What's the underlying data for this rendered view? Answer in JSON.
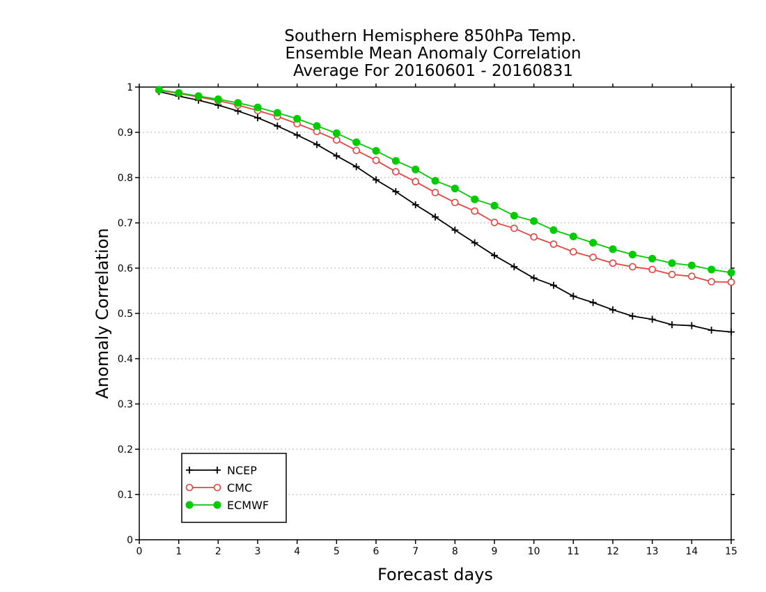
{
  "chart_data": {
    "type": "line",
    "title": [
      "Southern Hemisphere 850hPa Temp.",
      "Ensemble Mean Anomaly Correlation",
      "Average For 20160601 - 20160831"
    ],
    "xlabel": "Forecast days",
    "ylabel": "Anomaly Correlation",
    "xlim": [
      0,
      15
    ],
    "ylim": [
      0,
      1
    ],
    "xticks": [
      0,
      1,
      2,
      3,
      4,
      5,
      6,
      7,
      8,
      9,
      10,
      11,
      12,
      13,
      14,
      15
    ],
    "yticks": [
      0,
      0.1,
      0.2,
      0.3,
      0.4,
      0.5,
      0.6,
      0.7,
      0.8,
      0.9,
      1
    ],
    "ytick_labels": [
      "0",
      "0.1",
      "0.2",
      "0.3",
      "0.4",
      "0.5",
      "0.6",
      "0.7",
      "0.8",
      "0.9",
      "1"
    ],
    "grid": "horizontal dotted",
    "legend_position": "bottom-left",
    "x": [
      0.5,
      1,
      1.5,
      2,
      2.5,
      3,
      3.5,
      4,
      4.5,
      5,
      5.5,
      6,
      6.5,
      7,
      7.5,
      8,
      8.5,
      9,
      9.5,
      10,
      10.5,
      11,
      11.5,
      12,
      12.5,
      13,
      13.5,
      14,
      14.5,
      15
    ],
    "series": [
      {
        "name": "NCEP",
        "color": "#000000",
        "marker": "plus",
        "values": [
          0.99,
          0.98,
          0.971,
          0.96,
          0.947,
          0.932,
          0.914,
          0.894,
          0.873,
          0.848,
          0.824,
          0.795,
          0.769,
          0.74,
          0.713,
          0.684,
          0.656,
          0.628,
          0.603,
          0.578,
          0.562,
          0.538,
          0.524,
          0.508,
          0.494,
          0.487,
          0.475,
          0.473,
          0.463,
          0.459
        ]
      },
      {
        "name": "CMC",
        "color": "#e8423f",
        "marker": "open-circle",
        "values": [
          0.993,
          0.986,
          0.978,
          0.97,
          0.96,
          0.948,
          0.935,
          0.919,
          0.902,
          0.883,
          0.86,
          0.838,
          0.813,
          0.791,
          0.767,
          0.745,
          0.726,
          0.701,
          0.688,
          0.669,
          0.653,
          0.636,
          0.624,
          0.611,
          0.603,
          0.597,
          0.586,
          0.582,
          0.57,
          0.569
        ]
      },
      {
        "name": "ECMWF",
        "color": "#00cc00",
        "marker": "filled-circle",
        "values": [
          0.994,
          0.987,
          0.98,
          0.973,
          0.965,
          0.955,
          0.943,
          0.93,
          0.914,
          0.898,
          0.878,
          0.859,
          0.837,
          0.818,
          0.793,
          0.776,
          0.752,
          0.738,
          0.716,
          0.704,
          0.684,
          0.67,
          0.656,
          0.642,
          0.63,
          0.621,
          0.611,
          0.606,
          0.597,
          0.59
        ]
      }
    ]
  }
}
